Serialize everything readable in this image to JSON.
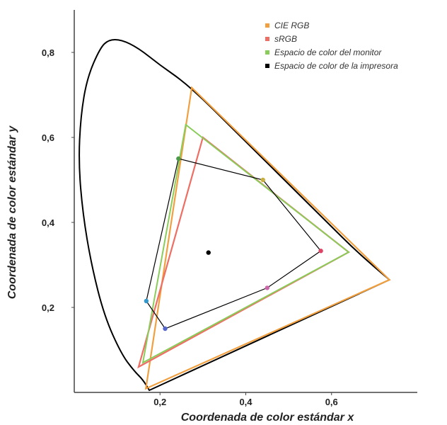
{
  "chart_data": {
    "type": "line",
    "title": "",
    "xlabel": "Coordenada de color estándar x",
    "ylabel": "Coordenada de color estándar y",
    "xlim": [
      0.0,
      0.8
    ],
    "ylim": [
      0.0,
      0.9
    ],
    "x_ticks": [
      0.2,
      0.4,
      0.6
    ],
    "x_tick_labels": [
      "0,2",
      "0,4",
      "0,6"
    ],
    "y_ticks": [
      0.2,
      0.4,
      0.6,
      0.8
    ],
    "y_tick_labels": [
      "0,2",
      "0,4",
      "0,6",
      "0,8"
    ],
    "grid": false,
    "legend_position": "top-right",
    "spectral_locus": {
      "color": "#000000",
      "points": [
        [
          0.175,
          0.005
        ],
        [
          0.16,
          0.03
        ],
        [
          0.14,
          0.05
        ],
        [
          0.11,
          0.09
        ],
        [
          0.07,
          0.18
        ],
        [
          0.04,
          0.3
        ],
        [
          0.02,
          0.42
        ],
        [
          0.01,
          0.54
        ],
        [
          0.015,
          0.65
        ],
        [
          0.03,
          0.74
        ],
        [
          0.06,
          0.81
        ],
        [
          0.08,
          0.83
        ],
        [
          0.11,
          0.83
        ],
        [
          0.15,
          0.81
        ],
        [
          0.2,
          0.77
        ],
        [
          0.25,
          0.735
        ],
        [
          0.3,
          0.69
        ],
        [
          0.35,
          0.64
        ],
        [
          0.4,
          0.59
        ],
        [
          0.45,
          0.54
        ],
        [
          0.5,
          0.49
        ],
        [
          0.55,
          0.44
        ],
        [
          0.6,
          0.39
        ],
        [
          0.65,
          0.34
        ],
        [
          0.7,
          0.295
        ],
        [
          0.735,
          0.265
        ]
      ]
    },
    "series": [
      {
        "name": "CIE RGB",
        "color": "#f0a040",
        "points": [
          [
            0.735,
            0.265
          ],
          [
            0.274,
            0.717
          ],
          [
            0.167,
            0.009
          ]
        ]
      },
      {
        "name": "sRGB",
        "color": "#ee6e64",
        "points": [
          [
            0.64,
            0.33
          ],
          [
            0.3,
            0.6
          ],
          [
            0.15,
            0.06
          ]
        ]
      },
      {
        "name": "Espacio de color del monitor",
        "color": "#8acc5a",
        "points": [
          [
            0.64,
            0.33
          ],
          [
            0.26,
            0.63
          ],
          [
            0.16,
            0.07
          ]
        ]
      },
      {
        "name": "Espacio de color de la impresora",
        "color": "#000000",
        "points": [
          [
            0.575,
            0.333
          ],
          [
            0.44,
            0.5
          ],
          [
            0.243,
            0.55
          ],
          [
            0.168,
            0.215
          ],
          [
            0.212,
            0.15
          ],
          [
            0.45,
            0.246
          ]
        ],
        "marker_colors": [
          "#dd4466",
          "#c8b040",
          "#4a9a4a",
          "#3399cc",
          "#5566cc",
          "#cc66aa"
        ]
      }
    ],
    "white_point": [
      0.313,
      0.329
    ]
  }
}
